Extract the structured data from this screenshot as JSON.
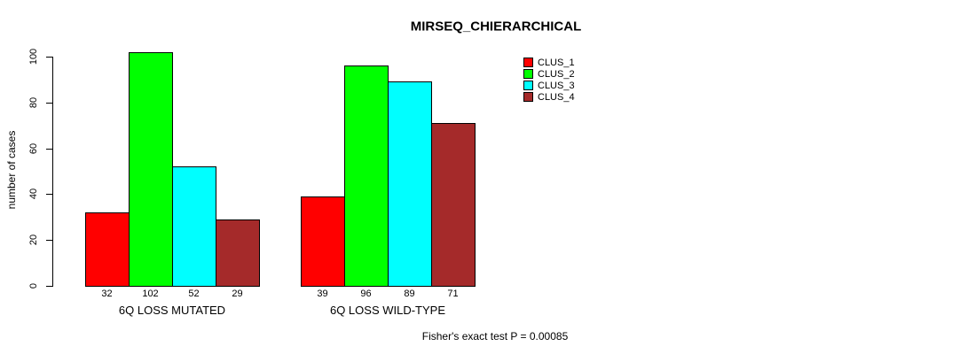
{
  "title": "MIRSEQ_CHIERARCHICAL",
  "y_axis_title": "number of cases",
  "annotation": "Fisher's exact test P = 0.00085",
  "colors": {
    "clus_1": "#FF0000",
    "clus_2": "#00FF00",
    "clus_3": "#00FFFF",
    "clus_4": "#A52A2A"
  },
  "chart_data": {
    "type": "bar",
    "title": "MIRSEQ_CHIERARCHICAL",
    "xlabel": "",
    "ylabel": "number of cases",
    "categories": [
      "6Q LOSS MUTATED",
      "6Q LOSS WILD-TYPE"
    ],
    "series": [
      {
        "name": "CLUS_1",
        "color": "#FF0000",
        "values": [
          32,
          39
        ]
      },
      {
        "name": "CLUS_2",
        "color": "#00FF00",
        "values": [
          102,
          96
        ]
      },
      {
        "name": "CLUS_3",
        "color": "#00FFFF",
        "values": [
          52,
          89
        ]
      },
      {
        "name": "CLUS_4",
        "color": "#A52A2A",
        "values": [
          29,
          71
        ]
      }
    ],
    "bar_value_labels": [
      [
        32,
        102,
        52,
        29
      ],
      [
        39,
        96,
        89,
        71
      ]
    ],
    "yticks": [
      0,
      20,
      40,
      60,
      80,
      100
    ],
    "ylim": [
      0,
      103
    ],
    "grid": false,
    "legend_position": "top-right",
    "legend_entries": [
      "CLUS_1",
      "CLUS_2",
      "CLUS_3",
      "CLUS_4"
    ],
    "annotation": "Fisher's exact test P = 0.00085"
  }
}
